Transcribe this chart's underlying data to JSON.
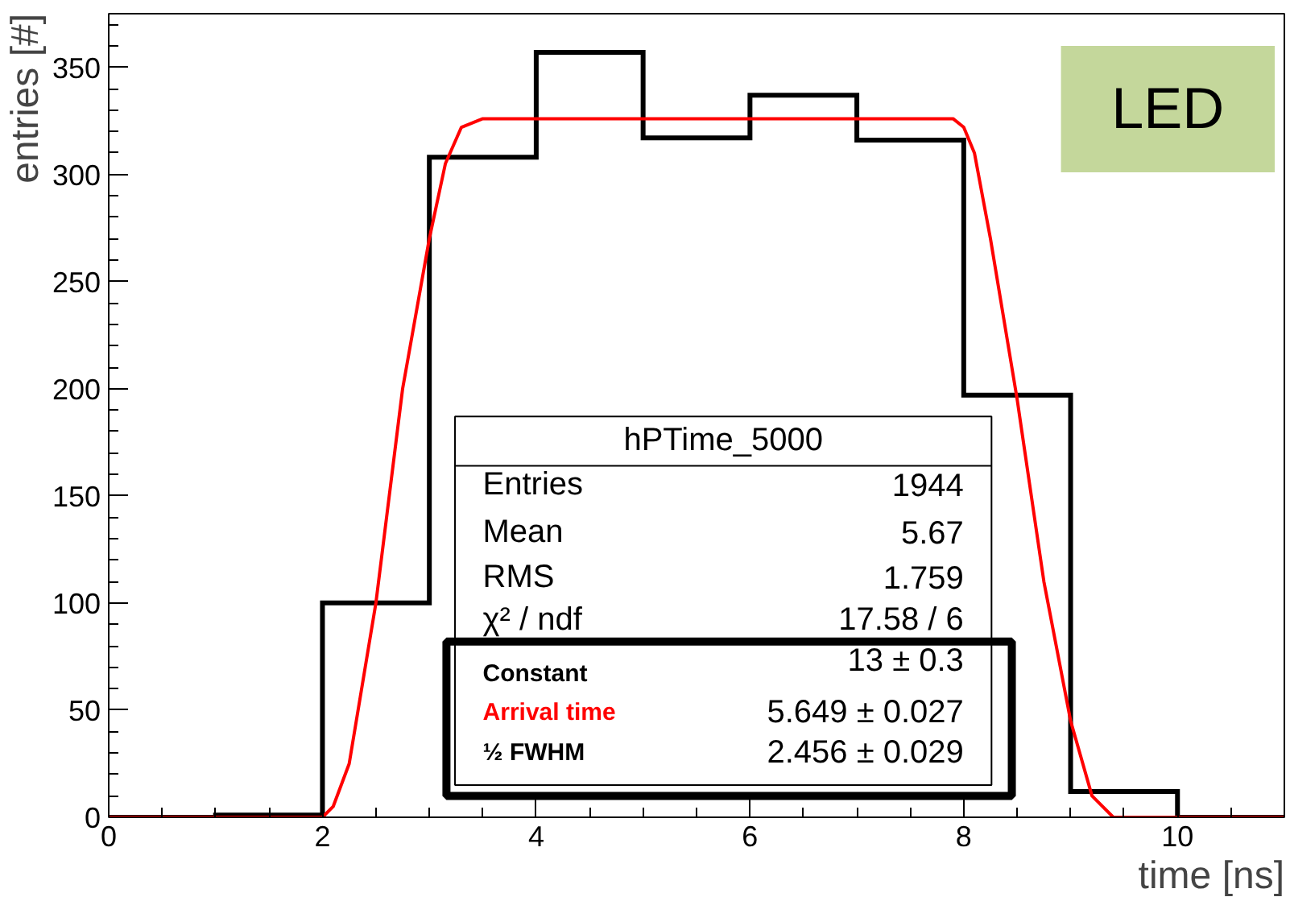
{
  "chart_data": {
    "type": "histogram",
    "xlabel": "time [ns]",
    "ylabel": "entries [#]",
    "bins": [
      0,
      1,
      2,
      3,
      4,
      5,
      6,
      7,
      8,
      9,
      10,
      11
    ],
    "values": [
      0,
      1,
      100,
      308,
      357,
      317,
      337,
      316,
      197,
      12,
      0
    ],
    "color": "#000000",
    "series": [
      {
        "type": "line",
        "color": "#ff0000",
        "x": [
          0,
          2.0,
          2.1,
          2.25,
          2.5,
          2.75,
          3.0,
          3.15,
          3.3,
          3.5,
          7.9,
          8.0,
          8.1,
          8.25,
          8.5,
          8.75,
          9.0,
          9.2,
          9.4,
          11
        ],
        "values": [
          0,
          0,
          5,
          25,
          100,
          200,
          270,
          305,
          322,
          326,
          326,
          322,
          310,
          270,
          195,
          110,
          45,
          10,
          0,
          0
        ]
      }
    ],
    "xlim": [
      0,
      11
    ],
    "ylim": [
      0,
      375
    ],
    "xticks": [
      0,
      2,
      4,
      6,
      8,
      10
    ],
    "yticks": [
      0,
      50,
      100,
      150,
      200,
      250,
      300,
      350
    ],
    "grid": false,
    "annotations": [
      "LED",
      "hPTime_5000",
      "Entries",
      "1944",
      "Mean",
      "5.67",
      "RMS",
      "1.759",
      "χ² / ndf",
      "17.58 / 6",
      "Constant",
      "13 ± 0.3",
      "Arrival  time",
      "5.649 ± 0.027",
      "½ FWHM",
      "2.456 ± 0.029"
    ]
  }
}
